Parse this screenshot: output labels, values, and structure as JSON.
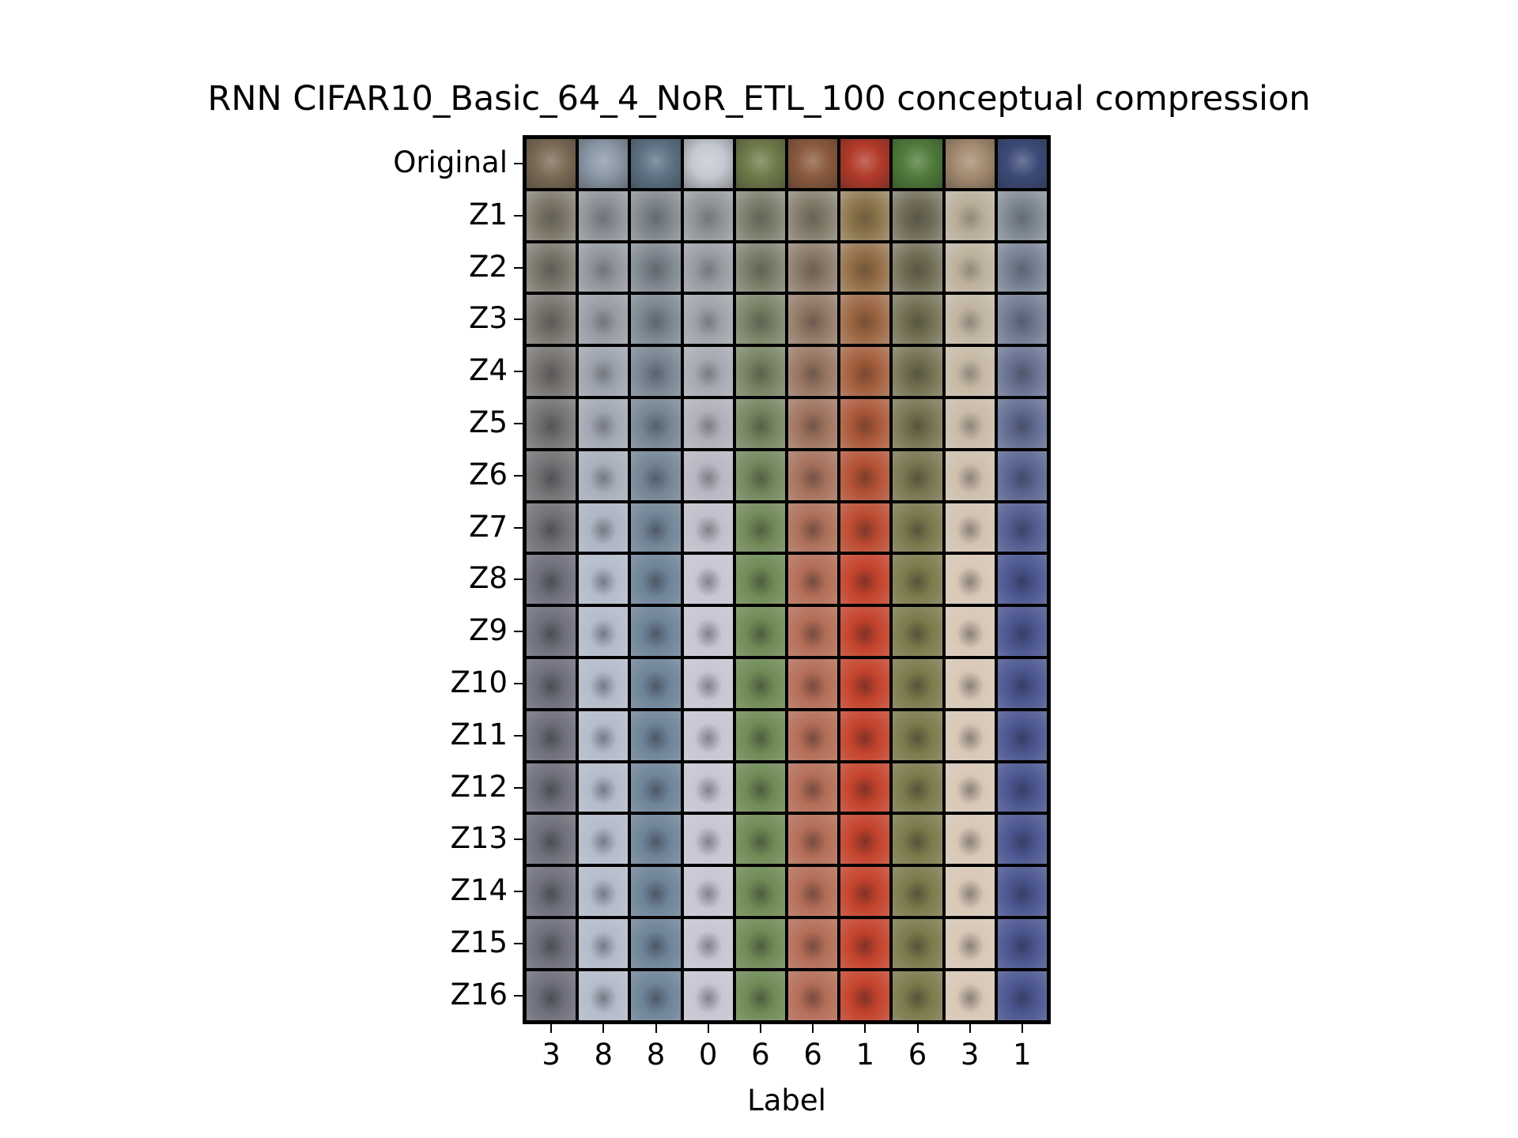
{
  "chart_data": {
    "type": "heatmap",
    "title": "RNN CIFAR10_Basic_64_4_NoR_ETL_100 conceptual compression",
    "xlabel": "Label",
    "ylabel": "",
    "row_labels": [
      "Original",
      "Z1",
      "Z2",
      "Z3",
      "Z4",
      "Z5",
      "Z6",
      "Z7",
      "Z8",
      "Z9",
      "Z10",
      "Z11",
      "Z12",
      "Z13",
      "Z14",
      "Z15",
      "Z16"
    ],
    "column_labels": [
      "3",
      "8",
      "8",
      "0",
      "6",
      "6",
      "1",
      "6",
      "3",
      "1"
    ],
    "column_colors_original": [
      "#7a6a55",
      "#8a97a6",
      "#5d7284",
      "#c4c8d0",
      "#6f7a4a",
      "#8a5a3e",
      "#b23a2a",
      "#4f7a3a",
      "#a38a70",
      "#3c4a78"
    ],
    "column_colors_final": [
      "#6e6f7a",
      "#b4bccb",
      "#6f8498",
      "#c9c6d4",
      "#6f8b55",
      "#b46e57",
      "#c4432c",
      "#7d7a4c",
      "#d8c8b6",
      "#4b5690"
    ],
    "column_colors_blur": [
      "#7a7566",
      "#8a8e94",
      "#7d848a",
      "#8e9398",
      "#7b7b6a",
      "#827a68",
      "#8a7348",
      "#6e6a55",
      "#b8ad98",
      "#7c8690"
    ]
  }
}
